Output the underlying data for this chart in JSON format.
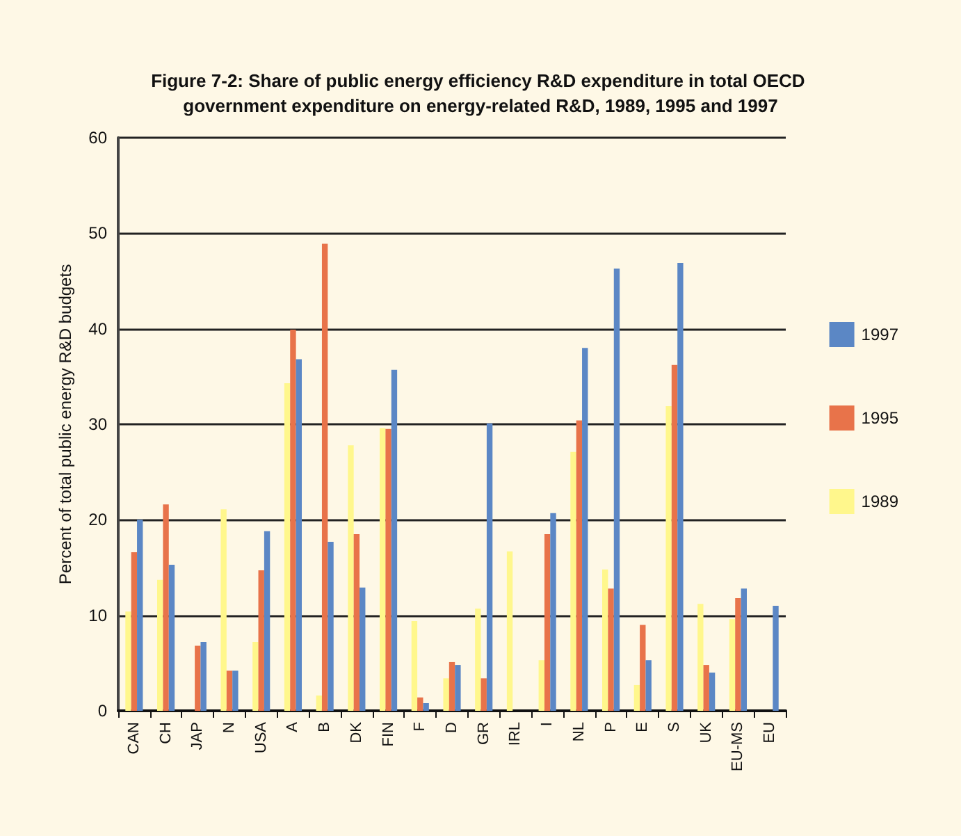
{
  "chart_data": {
    "type": "bar",
    "title": "Figure 7-2: Share of public energy efficiency R&D expenditure in total OECD government expenditure on energy-related R&D, 1989, 1995 and 1997",
    "ylabel": "Percent of total public energy R&D budgets",
    "categories": [
      "CAN",
      "CH",
      "JAP",
      "N",
      "USA",
      "A",
      "B",
      "DK",
      "FIN",
      "F",
      "D",
      "GR",
      "IRL",
      "I",
      "NL",
      "P",
      "E",
      "S",
      "UK",
      "EU-MS",
      "EU"
    ],
    "series": [
      {
        "name": "1989",
        "color": "#fff78c",
        "values": [
          10.4,
          13.7,
          null,
          21.1,
          7.2,
          34.3,
          1.6,
          27.8,
          29.6,
          9.4,
          3.4,
          10.7,
          16.7,
          5.3,
          27.1,
          14.8,
          2.7,
          31.9,
          11.2,
          9.6,
          null
        ]
      },
      {
        "name": "1995",
        "color": "#e8734a",
        "values": [
          16.6,
          21.6,
          6.8,
          4.2,
          14.7,
          39.9,
          48.9,
          18.5,
          29.5,
          1.4,
          5.1,
          3.4,
          null,
          18.5,
          30.4,
          12.8,
          9.0,
          36.2,
          4.8,
          11.8,
          null
        ]
      },
      {
        "name": "1997",
        "color": "#5b87c5",
        "values": [
          20.0,
          15.3,
          7.2,
          4.2,
          18.8,
          36.8,
          17.7,
          12.9,
          35.7,
          0.8,
          4.8,
          30.1,
          null,
          20.7,
          38.0,
          46.3,
          5.3,
          46.9,
          4.0,
          12.8,
          11.0
        ]
      }
    ],
    "ylim": [
      0,
      60
    ],
    "yticks": [
      0,
      10,
      20,
      30,
      40,
      50,
      60
    ],
    "grid": "y",
    "legend": "right"
  }
}
